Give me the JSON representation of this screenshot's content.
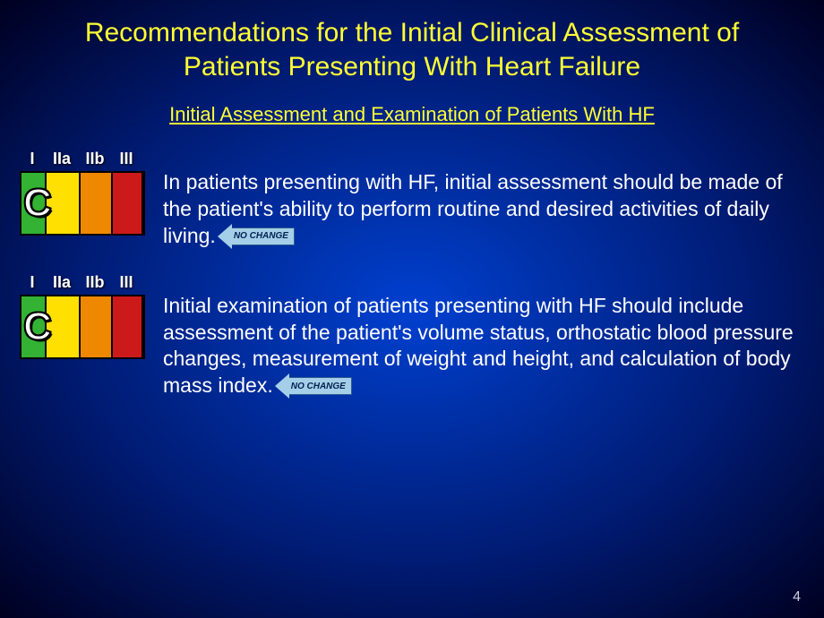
{
  "title": "Recommendations for the Initial Clinical Assessment of Patients Presenting With Heart Failure",
  "subtitle": "Initial Assessment and Examination of Patients With HF",
  "class_labels": {
    "i": "I",
    "iia": "IIa",
    "iib": "IIb",
    "iii": "III"
  },
  "class_colors": {
    "i": "#33b233",
    "iia": "#ffe000",
    "iib": "#ee8800",
    "iii": "#cc1a1a"
  },
  "recommendations": [
    {
      "evidence": "C",
      "text": "In patients presenting with HF, initial assessment should be made of the patient's ability to perform routine and desired activities of daily living.",
      "badge": "NO CHANGE"
    },
    {
      "evidence": "C",
      "text": "Initial examination of patients presenting with HF should include assessment of the patient's volume status, orthostatic blood pressure changes, measurement of weight and height, and calculation of body mass index.",
      "badge": "NO CHANGE"
    }
  ],
  "badge_color": "#a5cfe8",
  "page_number": "4"
}
